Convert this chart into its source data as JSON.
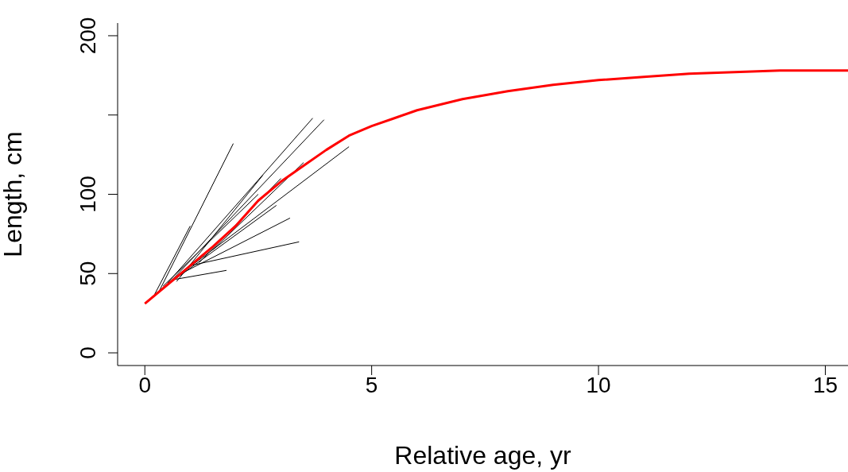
{
  "chart_data": {
    "type": "line",
    "xlabel": "Relative age, yr",
    "ylabel": "Length, cm",
    "xlim": [
      -0.6,
      15.5
    ],
    "ylim": [
      -8,
      208
    ],
    "xticks": [
      0,
      5,
      10,
      15
    ],
    "yticks": [
      0,
      50,
      100,
      {
        "value": 150,
        "label": null
      },
      200
    ],
    "marker": "none",
    "line_style": "solid",
    "series": [
      {
        "color": "#000000",
        "x": [
          0.3,
          1.95
        ],
        "values": [
          38,
          132
        ]
      },
      {
        "color": "#000000",
        "x": [
          0.5,
          3.7
        ],
        "values": [
          44,
          148
        ]
      },
      {
        "color": "#000000",
        "x": [
          0.6,
          3.95
        ],
        "values": [
          46,
          147
        ]
      },
      {
        "color": "#000000",
        "x": [
          0.8,
          4.5
        ],
        "values": [
          50,
          130
        ]
      },
      {
        "color": "#000000",
        "x": [
          1.0,
          3.4
        ],
        "values": [
          55,
          70
        ]
      },
      {
        "color": "#000000",
        "x": [
          0.8,
          3.2
        ],
        "values": [
          50,
          85
        ]
      },
      {
        "color": "#000000",
        "x": [
          0.6,
          1.8
        ],
        "values": [
          46,
          52
        ]
      },
      {
        "color": "#000000",
        "x": [
          0.5,
          2.9
        ],
        "values": [
          43,
          93
        ]
      },
      {
        "color": "#000000",
        "x": [
          1.2,
          3.0
        ],
        "values": [
          57,
          110
        ]
      },
      {
        "color": "#000000",
        "x": [
          0.2,
          1.0
        ],
        "values": [
          36,
          80
        ]
      },
      {
        "color": "#000000",
        "x": [
          0.4,
          2.5
        ],
        "values": [
          42,
          100
        ]
      },
      {
        "color": "#000000",
        "x": [
          1.5,
          3.5
        ],
        "values": [
          65,
          120
        ]
      },
      {
        "color": "#000000",
        "x": [
          0.7,
          2.6
        ],
        "values": [
          45,
          112
        ]
      },
      {
        "color": "#ff0000",
        "x": [
          0,
          0.5,
          1,
          1.5,
          2,
          2.5,
          3,
          3.5,
          4,
          4.5,
          5,
          5.5,
          6,
          7,
          8,
          9,
          10,
          11,
          12,
          13,
          14,
          15.5
        ],
        "values": [
          31,
          43,
          55,
          67,
          80,
          96,
          108,
          118,
          128,
          137,
          143,
          148,
          153,
          160,
          165,
          169,
          172,
          174,
          176,
          177,
          178,
          178
        ]
      }
    ]
  }
}
